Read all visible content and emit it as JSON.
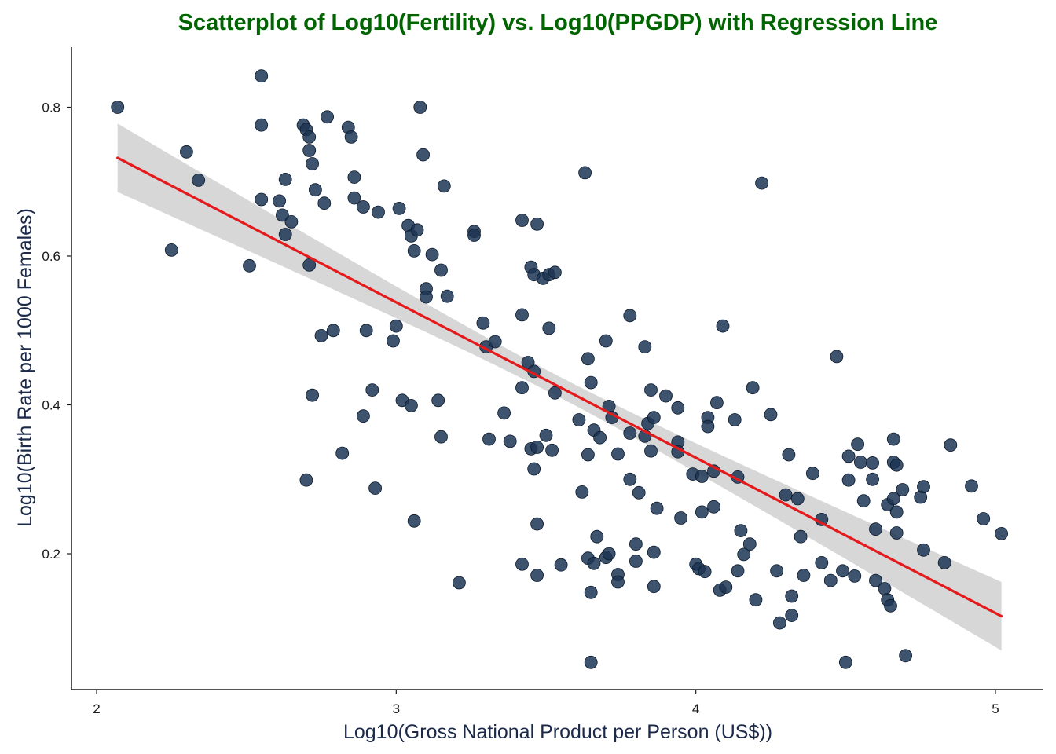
{
  "chart_data": {
    "type": "scatter",
    "title": "Scatterplot of Log10(Fertility) vs. Log10(PPGDP) with Regression Line",
    "xlabel": "Log10(Gross National Product per Person (US$))",
    "ylabel": "Log10(Birth Rate per 1000 Females)",
    "xlim": [
      1.95,
      5.15
    ],
    "ylim": [
      0.03,
      0.88
    ],
    "x_ticks": [
      {
        "value": 2,
        "label": "2"
      },
      {
        "value": 3,
        "label": "3"
      },
      {
        "value": 4,
        "label": "4"
      },
      {
        "value": 5,
        "label": "5"
      }
    ],
    "y_ticks": [
      {
        "value": 0.2,
        "label": "0.2"
      },
      {
        "value": 0.4,
        "label": "0.4"
      },
      {
        "value": 0.6,
        "label": "0.6"
      },
      {
        "value": 0.8,
        "label": "0.8"
      }
    ],
    "grid": false,
    "point_color": "#1c3553",
    "line_color": "#e41a1c",
    "ribbon_color": "#d3d3d3",
    "regression": {
      "x_start": 2.07,
      "y_start": 0.732,
      "x_end": 5.02,
      "y_end": 0.116,
      "band_halfwidth_ends": 0.046,
      "band_halfwidth_mid": 0.014
    },
    "points": [
      [
        2.07,
        0.8
      ],
      [
        2.25,
        0.608
      ],
      [
        2.3,
        0.74
      ],
      [
        2.34,
        0.702
      ],
      [
        2.51,
        0.587
      ],
      [
        2.55,
        0.842
      ],
      [
        2.55,
        0.776
      ],
      [
        2.55,
        0.676
      ],
      [
        2.61,
        0.674
      ],
      [
        2.62,
        0.655
      ],
      [
        2.63,
        0.703
      ],
      [
        2.63,
        0.629
      ],
      [
        2.65,
        0.646
      ],
      [
        2.69,
        0.776
      ],
      [
        2.7,
        0.77
      ],
      [
        2.7,
        0.299
      ],
      [
        2.71,
        0.76
      ],
      [
        2.71,
        0.742
      ],
      [
        2.71,
        0.588
      ],
      [
        2.72,
        0.724
      ],
      [
        2.72,
        0.413
      ],
      [
        2.73,
        0.689
      ],
      [
        2.75,
        0.493
      ],
      [
        2.76,
        0.671
      ],
      [
        2.77,
        0.787
      ],
      [
        2.79,
        0.5
      ],
      [
        2.82,
        0.335
      ],
      [
        2.84,
        0.773
      ],
      [
        2.85,
        0.76
      ],
      [
        2.86,
        0.706
      ],
      [
        2.86,
        0.678
      ],
      [
        2.89,
        0.385
      ],
      [
        2.89,
        0.666
      ],
      [
        2.9,
        0.5
      ],
      [
        2.92,
        0.42
      ],
      [
        2.93,
        0.288
      ],
      [
        2.94,
        0.659
      ],
      [
        2.99,
        0.486
      ],
      [
        3.0,
        0.506
      ],
      [
        3.01,
        0.664
      ],
      [
        3.02,
        0.406
      ],
      [
        3.04,
        0.641
      ],
      [
        3.05,
        0.627
      ],
      [
        3.05,
        0.399
      ],
      [
        3.06,
        0.244
      ],
      [
        3.06,
        0.607
      ],
      [
        3.07,
        0.635
      ],
      [
        3.08,
        0.8
      ],
      [
        3.09,
        0.736
      ],
      [
        3.1,
        0.556
      ],
      [
        3.1,
        0.545
      ],
      [
        3.12,
        0.602
      ],
      [
        3.14,
        0.406
      ],
      [
        3.15,
        0.581
      ],
      [
        3.15,
        0.357
      ],
      [
        3.16,
        0.694
      ],
      [
        3.17,
        0.546
      ],
      [
        3.21,
        0.161
      ],
      [
        3.26,
        0.633
      ],
      [
        3.26,
        0.628
      ],
      [
        3.29,
        0.51
      ],
      [
        3.3,
        0.478
      ],
      [
        3.31,
        0.354
      ],
      [
        3.33,
        0.485
      ],
      [
        3.36,
        0.389
      ],
      [
        3.38,
        0.351
      ],
      [
        3.42,
        0.648
      ],
      [
        3.42,
        0.521
      ],
      [
        3.42,
        0.423
      ],
      [
        3.42,
        0.186
      ],
      [
        3.44,
        0.457
      ],
      [
        3.45,
        0.585
      ],
      [
        3.45,
        0.341
      ],
      [
        3.46,
        0.445
      ],
      [
        3.46,
        0.575
      ],
      [
        3.46,
        0.314
      ],
      [
        3.47,
        0.643
      ],
      [
        3.47,
        0.343
      ],
      [
        3.47,
        0.24
      ],
      [
        3.47,
        0.171
      ],
      [
        3.49,
        0.57
      ],
      [
        3.5,
        0.359
      ],
      [
        3.51,
        0.575
      ],
      [
        3.51,
        0.503
      ],
      [
        3.52,
        0.339
      ],
      [
        3.53,
        0.578
      ],
      [
        3.53,
        0.416
      ],
      [
        3.55,
        0.185
      ],
      [
        3.61,
        0.38
      ],
      [
        3.62,
        0.283
      ],
      [
        3.63,
        0.712
      ],
      [
        3.64,
        0.194
      ],
      [
        3.64,
        0.462
      ],
      [
        3.64,
        0.333
      ],
      [
        3.65,
        0.43
      ],
      [
        3.65,
        0.148
      ],
      [
        3.65,
        0.054
      ],
      [
        3.66,
        0.366
      ],
      [
        3.66,
        0.187
      ],
      [
        3.67,
        0.223
      ],
      [
        3.68,
        0.356
      ],
      [
        3.7,
        0.486
      ],
      [
        3.7,
        0.195
      ],
      [
        3.71,
        0.398
      ],
      [
        3.71,
        0.2
      ],
      [
        3.72,
        0.383
      ],
      [
        3.74,
        0.334
      ],
      [
        3.74,
        0.172
      ],
      [
        3.74,
        0.162
      ],
      [
        3.78,
        0.52
      ],
      [
        3.78,
        0.362
      ],
      [
        3.78,
        0.3
      ],
      [
        3.8,
        0.213
      ],
      [
        3.8,
        0.19
      ],
      [
        3.81,
        0.282
      ],
      [
        3.83,
        0.478
      ],
      [
        3.83,
        0.358
      ],
      [
        3.84,
        0.375
      ],
      [
        3.85,
        0.42
      ],
      [
        3.85,
        0.338
      ],
      [
        3.86,
        0.383
      ],
      [
        3.86,
        0.202
      ],
      [
        3.86,
        0.156
      ],
      [
        3.87,
        0.261
      ],
      [
        3.9,
        0.412
      ],
      [
        3.94,
        0.396
      ],
      [
        3.94,
        0.35
      ],
      [
        3.94,
        0.337
      ],
      [
        3.95,
        0.248
      ],
      [
        3.99,
        0.307
      ],
      [
        4.0,
        0.186
      ],
      [
        4.01,
        0.18
      ],
      [
        4.02,
        0.304
      ],
      [
        4.02,
        0.256
      ],
      [
        4.03,
        0.176
      ],
      [
        4.04,
        0.383
      ],
      [
        4.04,
        0.371
      ],
      [
        4.06,
        0.311
      ],
      [
        4.06,
        0.263
      ],
      [
        4.07,
        0.403
      ],
      [
        4.08,
        0.151
      ],
      [
        4.09,
        0.506
      ],
      [
        4.1,
        0.155
      ],
      [
        4.13,
        0.38
      ],
      [
        4.14,
        0.303
      ],
      [
        4.14,
        0.177
      ],
      [
        4.15,
        0.231
      ],
      [
        4.16,
        0.199
      ],
      [
        4.18,
        0.213
      ],
      [
        4.19,
        0.423
      ],
      [
        4.2,
        0.138
      ],
      [
        4.22,
        0.698
      ],
      [
        4.25,
        0.387
      ],
      [
        4.27,
        0.177
      ],
      [
        4.28,
        0.107
      ],
      [
        4.3,
        0.279
      ],
      [
        4.31,
        0.333
      ],
      [
        4.32,
        0.143
      ],
      [
        4.32,
        0.117
      ],
      [
        4.34,
        0.274
      ],
      [
        4.35,
        0.223
      ],
      [
        4.36,
        0.171
      ],
      [
        4.39,
        0.308
      ],
      [
        4.42,
        0.246
      ],
      [
        4.42,
        0.188
      ],
      [
        4.45,
        0.164
      ],
      [
        4.47,
        0.465
      ],
      [
        4.49,
        0.177
      ],
      [
        4.5,
        0.054
      ],
      [
        4.51,
        0.331
      ],
      [
        4.51,
        0.299
      ],
      [
        4.53,
        0.17
      ],
      [
        4.54,
        0.347
      ],
      [
        4.55,
        0.323
      ],
      [
        4.56,
        0.271
      ],
      [
        4.59,
        0.322
      ],
      [
        4.59,
        0.3
      ],
      [
        4.6,
        0.233
      ],
      [
        4.6,
        0.164
      ],
      [
        4.63,
        0.153
      ],
      [
        4.64,
        0.266
      ],
      [
        4.64,
        0.138
      ],
      [
        4.65,
        0.13
      ],
      [
        4.66,
        0.274
      ],
      [
        4.66,
        0.354
      ],
      [
        4.66,
        0.323
      ],
      [
        4.67,
        0.319
      ],
      [
        4.67,
        0.256
      ],
      [
        4.67,
        0.228
      ],
      [
        4.69,
        0.286
      ],
      [
        4.7,
        0.063
      ],
      [
        4.75,
        0.276
      ],
      [
        4.76,
        0.29
      ],
      [
        4.76,
        0.205
      ],
      [
        4.83,
        0.188
      ],
      [
        4.85,
        0.346
      ],
      [
        4.92,
        0.291
      ],
      [
        4.96,
        0.247
      ],
      [
        5.02,
        0.227
      ]
    ]
  }
}
